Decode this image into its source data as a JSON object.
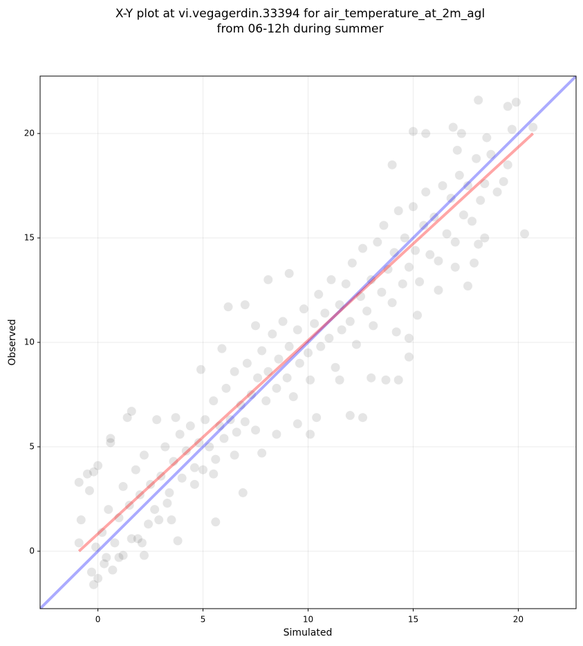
{
  "chart_data": {
    "type": "scatter",
    "title": "X-Y plot at vi.vegagerdin.33394 for air_temperature_at_2m_agl",
    "subtitle": "from 06-12h during summer",
    "xlabel": "Simulated",
    "ylabel": "Observed",
    "xlim": [
      -2.75,
      22.75
    ],
    "ylim": [
      -2.75,
      22.75
    ],
    "xticks": [
      0,
      5,
      10,
      15,
      20
    ],
    "yticks": [
      0,
      5,
      10,
      15,
      20
    ],
    "grid": true,
    "color": "#000000",
    "opacity": 0.1,
    "x": [
      -0.9,
      -0.8,
      -0.9,
      -0.5,
      -0.4,
      -0.2,
      0.0,
      0.6,
      0.6,
      1.4,
      1.6,
      2.8,
      3.7,
      -0.3,
      -0.2,
      0.0,
      0.4,
      0.7,
      1.2,
      2.2,
      1.0,
      3.8,
      5.6,
      6.9,
      12.0,
      12.6,
      10.1,
      10.4,
      13.7,
      14.3,
      14.8,
      14.8,
      15.2,
      16.2,
      17.0,
      17.6,
      17.9,
      18.4,
      18.1,
      20.3,
      19.7,
      19.9,
      19.5,
      18.1,
      15.0,
      15.6,
      16.9,
      17.3,
      17.1,
      18.5,
      20.7,
      14.0,
      6.2,
      7.0,
      8.1,
      9.1,
      1.0,
      1.2,
      1.5,
      1.8,
      2.0,
      2.2,
      2.5,
      2.7,
      3.0,
      3.2,
      3.4,
      3.6,
      3.9,
      4.0,
      4.2,
      4.4,
      4.6,
      4.8,
      5.0,
      5.1,
      5.3,
      5.5,
      5.6,
      5.8,
      6.0,
      6.1,
      6.3,
      6.5,
      6.6,
      6.8,
      7.0,
      7.1,
      7.3,
      7.5,
      7.6,
      7.8,
      8.0,
      8.1,
      8.3,
      8.5,
      8.6,
      8.8,
      9.0,
      9.1,
      9.3,
      9.5,
      9.6,
      9.8,
      10.0,
      10.1,
      10.3,
      10.5,
      10.6,
      10.8,
      11.0,
      11.1,
      11.3,
      11.5,
      11.6,
      11.8,
      12.0,
      12.1,
      12.3,
      12.5,
      12.6,
      12.8,
      13.0,
      13.1,
      13.3,
      13.5,
      13.6,
      13.8,
      14.0,
      14.1,
      14.3,
      14.5,
      14.6,
      14.8,
      15.0,
      15.1,
      15.3,
      15.5,
      15.6,
      15.8,
      16.0,
      16.2,
      16.4,
      16.6,
      16.8,
      17.0,
      17.2,
      17.4,
      17.6,
      17.8,
      18.0,
      18.2,
      18.4,
      18.7,
      19.0,
      19.3,
      19.5,
      0.2,
      0.5,
      0.8,
      -0.1,
      0.3,
      1.6,
      2.4,
      2.9,
      3.3,
      4.6,
      5.5,
      6.5,
      7.8,
      8.5,
      9.5,
      11.5,
      13.0,
      14.2,
      4.9,
      5.9,
      7.5,
      3.5,
      2.1,
      1.9
    ],
    "y": [
      3.3,
      1.5,
      0.4,
      3.7,
      2.9,
      3.8,
      4.1,
      5.4,
      5.2,
      6.4,
      6.7,
      6.3,
      6.4,
      -1.0,
      -1.6,
      -1.3,
      -0.3,
      -0.9,
      -0.2,
      -0.2,
      -0.3,
      0.5,
      1.4,
      2.8,
      6.5,
      6.4,
      5.6,
      6.4,
      8.2,
      8.2,
      9.3,
      10.2,
      11.3,
      12.5,
      13.6,
      12.7,
      13.8,
      15.0,
      14.7,
      15.2,
      20.2,
      21.5,
      21.3,
      21.6,
      20.1,
      20.0,
      20.3,
      20.0,
      19.2,
      19.8,
      20.3,
      18.5,
      11.7,
      11.8,
      13.0,
      13.3,
      1.6,
      3.1,
      2.2,
      3.9,
      2.7,
      4.6,
      3.2,
      2.0,
      3.6,
      5.0,
      2.8,
      4.3,
      5.6,
      3.5,
      4.8,
      6.0,
      4.0,
      5.2,
      3.9,
      6.3,
      5.0,
      7.2,
      4.4,
      6.0,
      5.4,
      7.8,
      6.3,
      8.6,
      5.7,
      7.0,
      6.2,
      9.0,
      7.5,
      5.8,
      8.3,
      9.6,
      7.2,
      8.6,
      10.4,
      7.8,
      9.2,
      11.0,
      8.3,
      9.8,
      7.4,
      10.6,
      9.0,
      11.6,
      9.5,
      8.2,
      10.9,
      12.3,
      9.8,
      11.4,
      10.2,
      13.0,
      8.8,
      11.8,
      10.6,
      12.8,
      11.0,
      13.8,
      9.9,
      12.2,
      14.5,
      11.5,
      13.0,
      10.8,
      14.8,
      12.4,
      15.6,
      13.5,
      11.9,
      14.3,
      16.3,
      12.8,
      15.0,
      13.6,
      16.5,
      14.4,
      12.9,
      15.6,
      17.2,
      14.2,
      16.0,
      13.9,
      17.5,
      15.2,
      16.9,
      14.8,
      18.0,
      16.1,
      17.5,
      15.8,
      18.8,
      16.8,
      17.6,
      19.0,
      17.2,
      17.7,
      18.5,
      0.9,
      2.0,
      0.4,
      0.2,
      -0.6,
      0.6,
      1.3,
      1.5,
      2.3,
      3.2,
      3.7,
      4.6,
      4.7,
      5.6,
      6.1,
      8.2,
      8.3,
      10.5,
      8.7,
      9.7,
      10.8,
      1.5,
      0.4,
      0.6
    ],
    "lines": [
      {
        "color": "#0000ff",
        "opacity": 0.33,
        "x": [
          -2.75,
          22.75
        ],
        "y": [
          -2.75,
          22.75
        ]
      },
      {
        "color": "#ff0000",
        "opacity": 0.35,
        "x": [
          -0.9,
          20.7
        ],
        "y": [
          0.0,
          20.0
        ]
      }
    ]
  }
}
